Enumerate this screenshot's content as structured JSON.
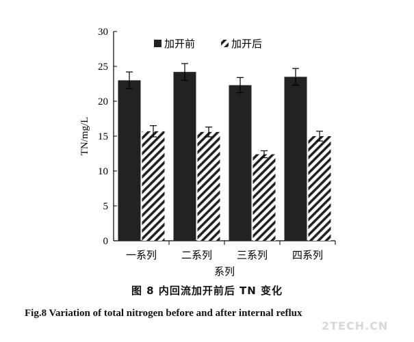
{
  "chart_data": {
    "type": "bar",
    "categories": [
      "一系列",
      "二系列",
      "三系列",
      "四系列"
    ],
    "series": [
      {
        "name": "加开前",
        "values": [
          23.0,
          24.2,
          22.3,
          23.5
        ],
        "errors": [
          1.2,
          1.2,
          1.1,
          1.2
        ],
        "fill": "solid"
      },
      {
        "name": "加开后",
        "values": [
          15.7,
          15.6,
          12.4,
          15.0
        ],
        "errors": [
          0.8,
          0.7,
          0.5,
          0.7
        ],
        "fill": "hatched"
      }
    ],
    "xlabel": "系列",
    "ylabel": "TN/mg/L",
    "ylim": [
      0,
      30
    ],
    "yticks": [
      0,
      5,
      10,
      15,
      20,
      25,
      30
    ],
    "grid": false,
    "legend_position": "top-center",
    "bar_color": "#222222"
  },
  "caption_cn": "图 8    内回流加开前后 TN 变化",
  "caption_en": "Fig.8    Variation of total nitrogen before and after internal reflux",
  "watermark": "2TECH.CN"
}
